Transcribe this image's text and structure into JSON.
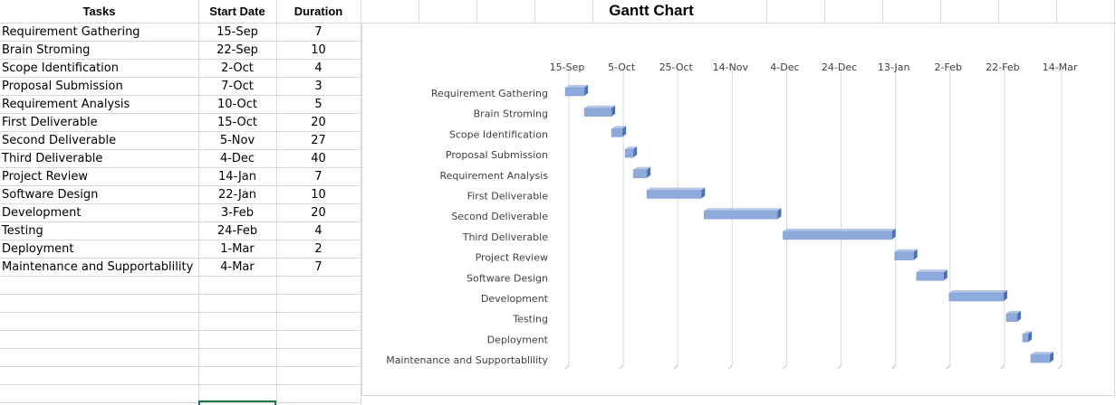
{
  "sheet": {
    "headers": {
      "task": "Tasks",
      "start": "Start Date",
      "duration": "Duration"
    },
    "rows": [
      {
        "task": "Requirement Gathering",
        "start": "15-Sep",
        "duration": "7"
      },
      {
        "task": "Brain Stroming",
        "start": "22-Sep",
        "duration": "10"
      },
      {
        "task": "Scope Identification",
        "start": "2-Oct",
        "duration": "4"
      },
      {
        "task": "Proposal Submission",
        "start": "7-Oct",
        "duration": "3"
      },
      {
        "task": "Requirement Analysis",
        "start": "10-Oct",
        "duration": "5"
      },
      {
        "task": "First Deliverable",
        "start": "15-Oct",
        "duration": "20"
      },
      {
        "task": "Second Deliverable",
        "start": "5-Nov",
        "duration": "27"
      },
      {
        "task": "Third Deliverable",
        "start": "4-Dec",
        "duration": "40"
      },
      {
        "task": "Project Review",
        "start": "14-Jan",
        "duration": "7"
      },
      {
        "task": "Software Design",
        "start": "22-Jan",
        "duration": "10"
      },
      {
        "task": "Development",
        "start": "3-Feb",
        "duration": "20"
      },
      {
        "task": "Testing",
        "start": "24-Feb",
        "duration": "4"
      },
      {
        "task": "Deployment",
        "start": "1-Mar",
        "duration": "2"
      },
      {
        "task": "Maintenance and Supportablility",
        "start": "4-Mar",
        "duration": "7"
      }
    ]
  },
  "chart_data": {
    "type": "bar",
    "orientation": "horizontal-gantt",
    "title": "Gantt Chart",
    "xlabel": "",
    "ylabel": "",
    "x_ticks": [
      "15-Sep",
      "5-Oct",
      "25-Oct",
      "14-Nov",
      "4-Dec",
      "24-Dec",
      "13-Jan",
      "2-Feb",
      "22-Feb",
      "14-Mar"
    ],
    "categories": [
      "Requirement Gathering",
      "Brain Stroming",
      "Scope Identification",
      "Proposal Submission",
      "Requirement Analysis",
      "First Deliverable",
      "Second Deliverable",
      "Third Deliverable",
      "Project Review",
      "Software Design",
      "Development",
      "Testing",
      "Deployment",
      "Maintenance and Supportablility"
    ],
    "start": [
      "15-Sep",
      "22-Sep",
      "2-Oct",
      "7-Oct",
      "10-Oct",
      "15-Oct",
      "5-Nov",
      "4-Dec",
      "14-Jan",
      "22-Jan",
      "3-Feb",
      "24-Feb",
      "1-Mar",
      "4-Mar"
    ],
    "duration_days": [
      7,
      10,
      4,
      3,
      5,
      20,
      27,
      40,
      7,
      10,
      20,
      4,
      2,
      7
    ],
    "bar_color": "#8ea9db",
    "grid": true,
    "legend": "none"
  }
}
